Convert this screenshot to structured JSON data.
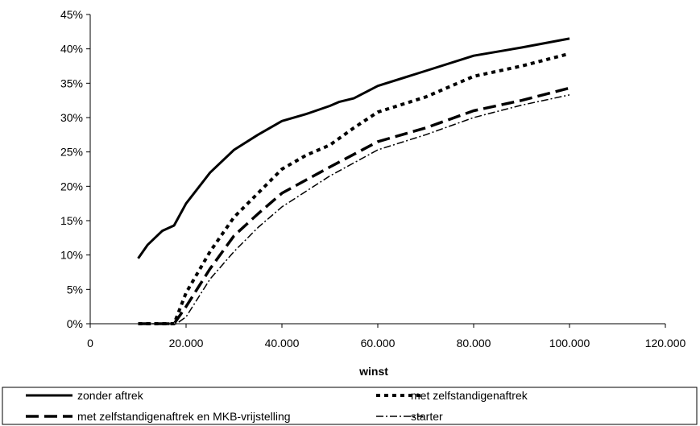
{
  "chart_data": {
    "type": "line",
    "xlabel": "winst",
    "ylabel": "",
    "xlim": [
      0,
      120000
    ],
    "ylim": [
      0,
      45
    ],
    "x_ticks": [
      {
        "value": 0,
        "label": "0"
      },
      {
        "value": 20000,
        "label": "20.000"
      },
      {
        "value": 40000,
        "label": "40.000"
      },
      {
        "value": 60000,
        "label": "60.000"
      },
      {
        "value": 80000,
        "label": "80.000"
      },
      {
        "value": 100000,
        "label": "100.000"
      },
      {
        "value": 120000,
        "label": "120.000"
      }
    ],
    "y_ticks": [
      {
        "value": 0,
        "label": "0%"
      },
      {
        "value": 5,
        "label": "5%"
      },
      {
        "value": 10,
        "label": "10%"
      },
      {
        "value": 15,
        "label": "15%"
      },
      {
        "value": 20,
        "label": "20%"
      },
      {
        "value": 25,
        "label": "25%"
      },
      {
        "value": 30,
        "label": "30%"
      },
      {
        "value": 35,
        "label": "35%"
      },
      {
        "value": 40,
        "label": "40%"
      },
      {
        "value": 45,
        "label": "45%"
      }
    ],
    "grid": false,
    "legend_position": "bottom",
    "series": [
      {
        "name": "zonder aftrek",
        "style": "solid",
        "color": "#000000",
        "points": [
          [
            10000,
            9.5
          ],
          [
            12000,
            11.5
          ],
          [
            15000,
            13.5
          ],
          [
            17500,
            14.3
          ],
          [
            20000,
            17.5
          ],
          [
            25000,
            22.0
          ],
          [
            30000,
            25.3
          ],
          [
            35000,
            27.5
          ],
          [
            40000,
            29.5
          ],
          [
            45000,
            30.5
          ],
          [
            50000,
            31.7
          ],
          [
            52000,
            32.3
          ],
          [
            55000,
            32.8
          ],
          [
            60000,
            34.6
          ],
          [
            70000,
            36.8
          ],
          [
            80000,
            39.0
          ],
          [
            90000,
            40.2
          ],
          [
            100000,
            41.5
          ]
        ]
      },
      {
        "name": "met zelfstandigenaftrek",
        "style": "dotted",
        "color": "#000000",
        "points": [
          [
            10000,
            0
          ],
          [
            15000,
            0
          ],
          [
            17500,
            0
          ],
          [
            20000,
            4.5
          ],
          [
            25000,
            10.5
          ],
          [
            30000,
            15.5
          ],
          [
            35000,
            19.0
          ],
          [
            40000,
            22.5
          ],
          [
            45000,
            24.5
          ],
          [
            50000,
            26.0
          ],
          [
            55000,
            28.5
          ],
          [
            60000,
            30.8
          ],
          [
            70000,
            33.0
          ],
          [
            80000,
            36.0
          ],
          [
            90000,
            37.5
          ],
          [
            100000,
            39.3
          ]
        ]
      },
      {
        "name": "met zelfstandigenaftrek en MKB-vrijstelling",
        "style": "long-dash",
        "color": "#000000",
        "points": [
          [
            10000,
            0
          ],
          [
            15000,
            0
          ],
          [
            17500,
            0
          ],
          [
            20000,
            2.5
          ],
          [
            25000,
            8.0
          ],
          [
            30000,
            12.8
          ],
          [
            35000,
            16.0
          ],
          [
            40000,
            19.0
          ],
          [
            50000,
            22.8
          ],
          [
            60000,
            26.5
          ],
          [
            70000,
            28.5
          ],
          [
            80000,
            31.0
          ],
          [
            90000,
            32.5
          ],
          [
            100000,
            34.3
          ]
        ]
      },
      {
        "name": "starter",
        "style": "dash-dot",
        "color": "#000000",
        "points": [
          [
            10000,
            0
          ],
          [
            15000,
            0
          ],
          [
            18000,
            0
          ],
          [
            20000,
            1.0
          ],
          [
            25000,
            6.5
          ],
          [
            30000,
            10.5
          ],
          [
            35000,
            14.0
          ],
          [
            40000,
            17.0
          ],
          [
            50000,
            21.5
          ],
          [
            60000,
            25.3
          ],
          [
            70000,
            27.5
          ],
          [
            80000,
            30.0
          ],
          [
            90000,
            31.8
          ],
          [
            100000,
            33.3
          ]
        ]
      }
    ]
  }
}
